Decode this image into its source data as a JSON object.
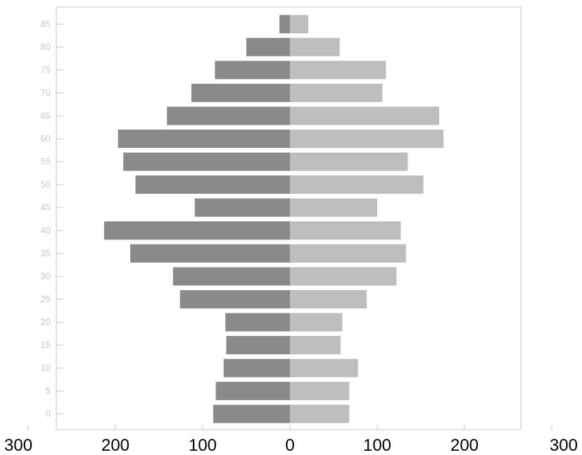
{
  "chart_data": {
    "type": "bar",
    "orientation": "horizontal-mirrored",
    "title": "",
    "xlabel": "",
    "ylabel": "",
    "xlim": [
      -300,
      300
    ],
    "x_tick_labels": [
      "300",
      "200",
      "100",
      "0",
      "100",
      "200",
      "300"
    ],
    "x_tick_values": [
      -300,
      -200,
      -100,
      0,
      100,
      200,
      300
    ],
    "categories": [
      "0",
      "5",
      "10",
      "15",
      "20",
      "25",
      "30",
      "35",
      "40",
      "45",
      "50",
      "55",
      "60",
      "65",
      "70",
      "75",
      "80",
      "85"
    ],
    "series": [
      {
        "side": "left",
        "color": "#8a8a8a",
        "values": [
          88,
          85,
          76,
          73,
          74,
          126,
          134,
          183,
          213,
          109,
          177,
          191,
          197,
          141,
          113,
          86,
          50,
          12
        ]
      },
      {
        "side": "right",
        "color": "#bdbdbd",
        "values": [
          68,
          68,
          78,
          58,
          60,
          88,
          122,
          133,
          127,
          100,
          153,
          135,
          176,
          171,
          106,
          110,
          57,
          21
        ]
      }
    ],
    "grid": false,
    "legend": "none"
  }
}
